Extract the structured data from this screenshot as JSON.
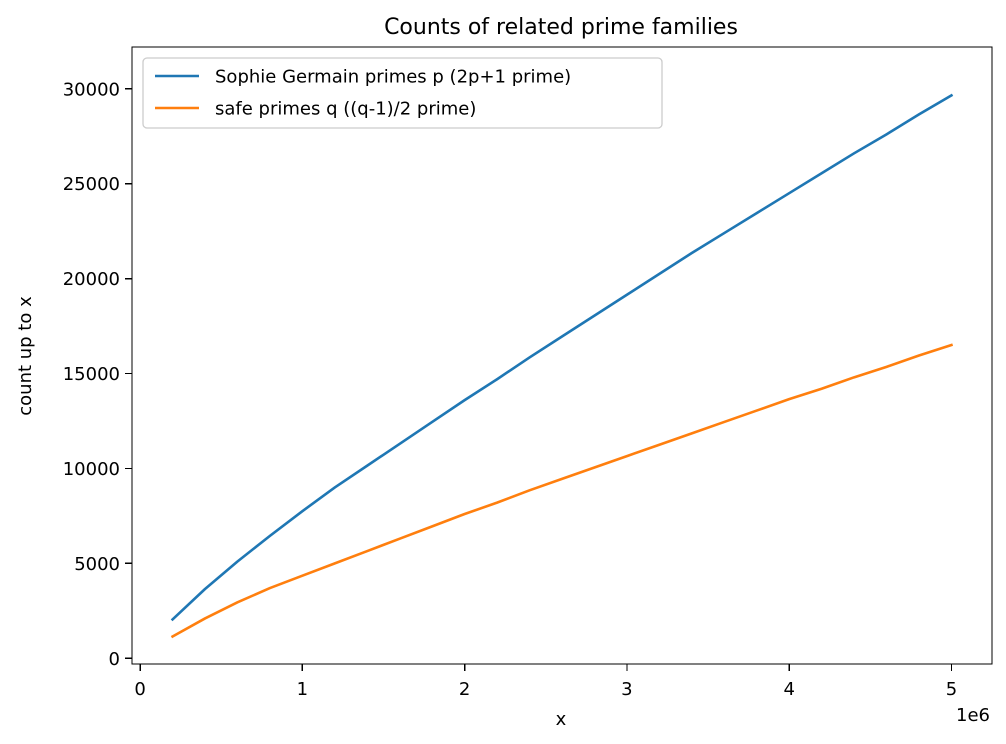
{
  "chart_data": {
    "type": "line",
    "title": "Counts of related prime families",
    "xlabel": "x",
    "ylabel": "count up to x",
    "x_offset_label": "1e6",
    "xlim": [
      -50000,
      5250000
    ],
    "ylim": [
      -300,
      32200
    ],
    "x_ticks": [
      0,
      1000000,
      2000000,
      3000000,
      4000000,
      5000000
    ],
    "x_tick_labels": [
      "0",
      "1",
      "2",
      "3",
      "4",
      "5"
    ],
    "y_ticks": [
      0,
      5000,
      10000,
      15000,
      20000,
      25000,
      30000
    ],
    "y_tick_labels": [
      "0",
      "5000",
      "10000",
      "15000",
      "20000",
      "25000",
      "30000"
    ],
    "grid": false,
    "legend_position": "top-left",
    "x": [
      200000,
      400000,
      600000,
      800000,
      1000000,
      1200000,
      1400000,
      1600000,
      1800000,
      2000000,
      2200000,
      2400000,
      2600000,
      2800000,
      3000000,
      3200000,
      3400000,
      3600000,
      3800000,
      4000000,
      4200000,
      4400000,
      4600000,
      4800000,
      5000000
    ],
    "series": [
      {
        "name": "Sophie Germain primes p (2p+1 prime)",
        "color": "#1f77b4",
        "values": [
          2050,
          3650,
          5100,
          6450,
          7750,
          9000,
          10150,
          11300,
          12450,
          13600,
          14700,
          15850,
          16950,
          18050,
          19150,
          20250,
          21350,
          22400,
          23450,
          24500,
          25550,
          26600,
          27600,
          28650,
          29650
        ]
      },
      {
        "name": "safe primes q ((q-1)/2 prime)",
        "color": "#ff7f0e",
        "values": [
          1150,
          2100,
          2950,
          3700,
          4350,
          5000,
          5650,
          6300,
          6950,
          7600,
          8200,
          8850,
          9450,
          10050,
          10650,
          11250,
          11850,
          12450,
          13050,
          13650,
          14200,
          14800,
          15350,
          15950,
          16500
        ]
      }
    ]
  }
}
